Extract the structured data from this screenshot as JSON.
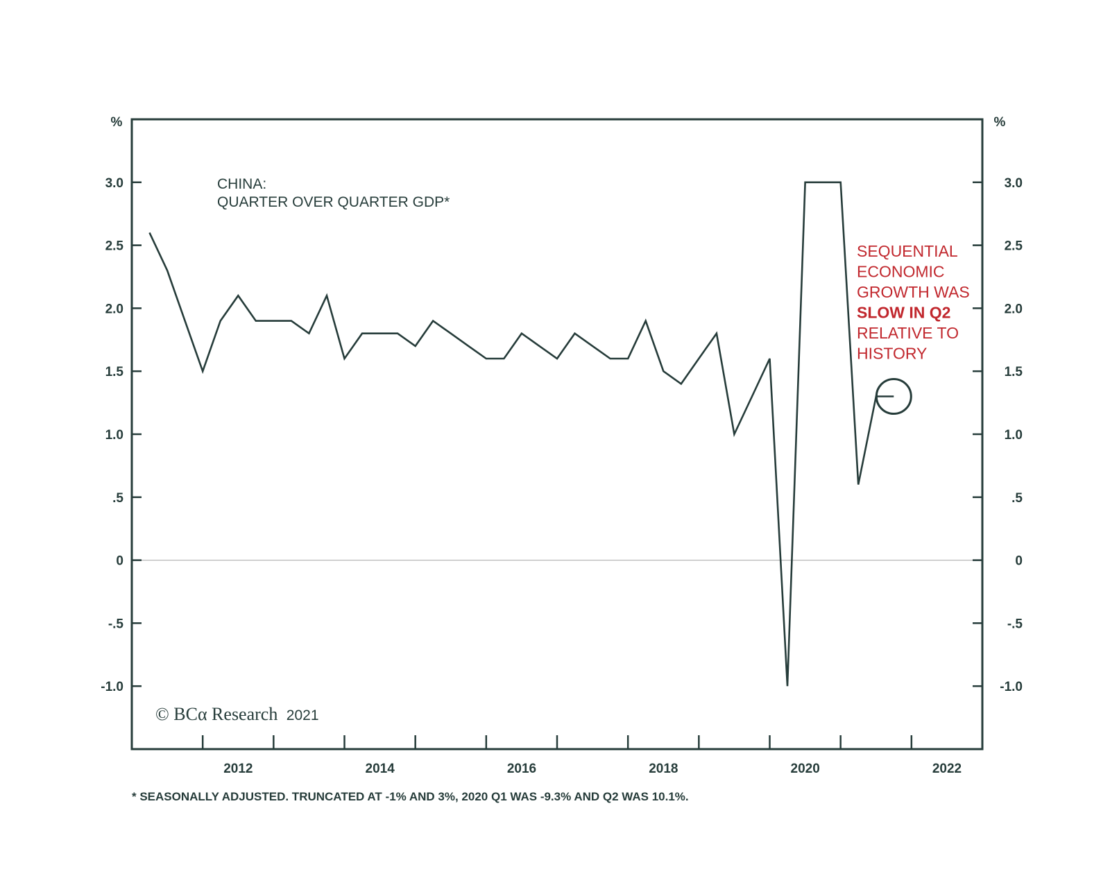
{
  "chart_data": {
    "type": "line",
    "title_lines": [
      "CHINA:",
      "QUARTER OVER QUARTER GDP*"
    ],
    "y_unit_left": "%",
    "y_unit_right": "%",
    "ylim": [
      -1.5,
      3.5
    ],
    "yticks": [
      {
        "value": 3.0,
        "label": "3.0"
      },
      {
        "value": 2.5,
        "label": "2.5"
      },
      {
        "value": 2.0,
        "label": "2.0"
      },
      {
        "value": 1.5,
        "label": "1.5"
      },
      {
        "value": 1.0,
        "label": "1.0"
      },
      {
        "value": 0.5,
        "label": ".5"
      },
      {
        "value": 0,
        "label": "0"
      },
      {
        "value": -0.5,
        "label": "-.5"
      },
      {
        "value": -1.0,
        "label": "-1.0"
      }
    ],
    "xlim": [
      2010.75,
      2022.75
    ],
    "xticks": [
      {
        "value": 2011.75,
        "label": ""
      },
      {
        "value": 2012.75,
        "label": "2012"
      },
      {
        "value": 2013.75,
        "label": ""
      },
      {
        "value": 2014.75,
        "label": "2014"
      },
      {
        "value": 2015.75,
        "label": ""
      },
      {
        "value": 2016.75,
        "label": "2016"
      },
      {
        "value": 2017.75,
        "label": ""
      },
      {
        "value": 2018.75,
        "label": "2018"
      },
      {
        "value": 2019.75,
        "label": ""
      },
      {
        "value": 2020.75,
        "label": "2020"
      },
      {
        "value": 2021.75,
        "label": ""
      },
      {
        "value": 2022.75,
        "label": "2022"
      }
    ],
    "zero_line": true,
    "series": [
      {
        "color": "#263c3a",
        "x": [
          2011.0,
          2011.25,
          2011.5,
          2011.75,
          2012.0,
          2012.25,
          2012.5,
          2012.75,
          2013.0,
          2013.25,
          2013.5,
          2013.75,
          2014.0,
          2014.25,
          2014.5,
          2014.75,
          2015.0,
          2015.25,
          2015.5,
          2015.75,
          2016.0,
          2016.25,
          2016.5,
          2016.75,
          2017.0,
          2017.25,
          2017.5,
          2017.75,
          2018.0,
          2018.25,
          2018.5,
          2018.75,
          2019.0,
          2019.25,
          2019.5,
          2019.75,
          2020.0,
          2020.25,
          2020.5,
          2020.75,
          2021.0,
          2021.25,
          2021.5
        ],
        "values": [
          2.6,
          2.3,
          1.9,
          1.5,
          1.9,
          2.1,
          1.9,
          1.9,
          1.9,
          1.8,
          2.1,
          1.6,
          1.8,
          1.8,
          1.8,
          1.7,
          1.9,
          1.8,
          1.7,
          1.6,
          1.6,
          1.8,
          1.7,
          1.6,
          1.8,
          1.7,
          1.6,
          1.6,
          1.9,
          1.5,
          1.4,
          1.6,
          1.8,
          1.0,
          1.3,
          1.6,
          -1.0,
          3.0,
          3.0,
          3.0,
          0.6,
          1.3,
          1.3
        ]
      }
    ],
    "highlight": {
      "x": 2021.5,
      "y": 1.3,
      "color": "#263c3a"
    },
    "annotation": {
      "color": "#c1272d",
      "lines": [
        {
          "text": "SEQUENTIAL",
          "bold": false
        },
        {
          "text": "ECONOMIC",
          "bold": false
        },
        {
          "text": "GROWTH WAS",
          "bold": false
        },
        {
          "text": "SLOW IN Q2",
          "bold": true
        },
        {
          "text": "RELATIVE TO",
          "bold": false
        },
        {
          "text": "HISTORY",
          "bold": false
        }
      ]
    },
    "credit": {
      "main": "© BCα Research",
      "year": "2021"
    },
    "footnote": "* SEASONALLY ADJUSTED. TRUNCATED AT -1% AND 3%, 2020 Q1 WAS -9.3% AND Q2 WAS 10.1%."
  }
}
